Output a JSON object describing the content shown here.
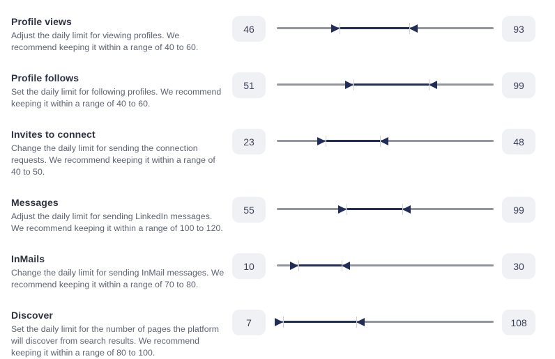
{
  "colors": {
    "accent_navy": "#222c58",
    "track_gray": "#92959e",
    "chip_background": "#f0f1f4",
    "title_text": "#2e3241",
    "description_text": "#5d6271",
    "value_text": "#3c415a"
  },
  "settings": [
    {
      "id": "profile-views",
      "title": "Profile views",
      "description": "Adjust the daily limit for viewing profiles. We\nrecommend keeping it within a range of 40 to 60.",
      "min_value": "46",
      "max_value": "93",
      "slider": {
        "left_pct": 29,
        "right_pct": 61
      }
    },
    {
      "id": "profile-follows",
      "title": "Profile follows",
      "description": "Set the daily limit for following profiles. We recommend\nkeeping it within a range of 40 to 60.",
      "min_value": "51",
      "max_value": "99",
      "slider": {
        "left_pct": 35.5,
        "right_pct": 70
      }
    },
    {
      "id": "invites-to-connect",
      "title": "Invites to connect",
      "description": "Change the daily limit for sending the connection\nrequests. We recommend keeping it within a range of\n40 to 50.",
      "min_value": "23",
      "max_value": "48",
      "slider": {
        "left_pct": 22.5,
        "right_pct": 47.5
      }
    },
    {
      "id": "messages",
      "title": "Messages",
      "description": "Adjust the daily limit for sending LinkedIn messages.\nWe recommend keeping it within a range of 100 to 120.",
      "min_value": "55",
      "max_value": "99",
      "slider": {
        "left_pct": 32,
        "right_pct": 58
      }
    },
    {
      "id": "inmails",
      "title": "InMails",
      "description": "Change the daily limit for sending InMail messages. We\nrecommend keeping it within a range of 70 to 80.",
      "min_value": "10",
      "max_value": "30",
      "slider": {
        "left_pct": 10,
        "right_pct": 30
      }
    },
    {
      "id": "discover",
      "title": "Discover",
      "description": "Set the daily limit for the number of pages the platform\nwill discover from search results. We recommend\nkeeping it within a range of 80 to 100.",
      "min_value": "7",
      "max_value": "108",
      "slider": {
        "left_pct": 3,
        "right_pct": 36.5
      }
    }
  ]
}
